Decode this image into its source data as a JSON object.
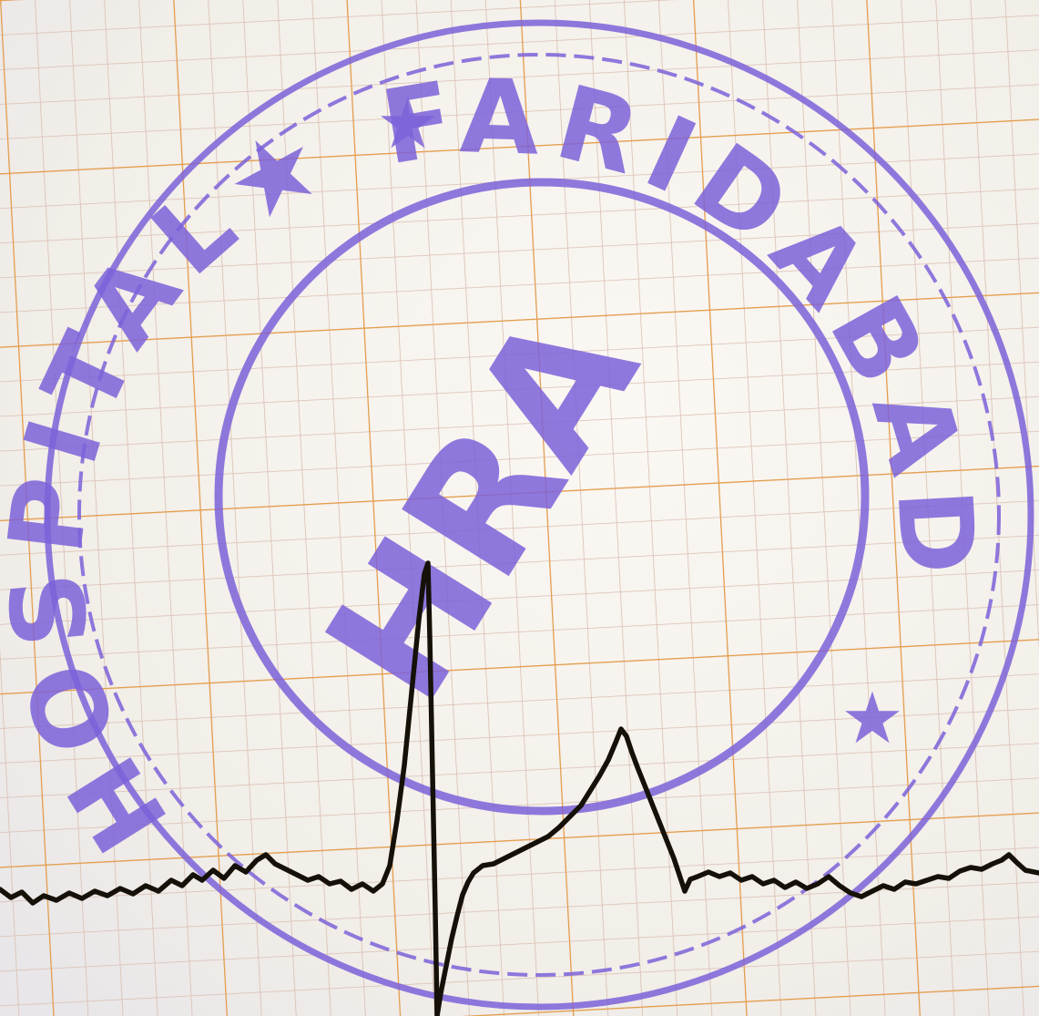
{
  "photo": {
    "subject": "ECG paper",
    "paper_color": "#f8f4ef",
    "grid_minor_color": "#d8b8a6",
    "grid_major_color": "#e0953f",
    "trace_color": "#151108",
    "stamp_color": "#7b62d8"
  },
  "stamp": {
    "outer_ring_text": "HOSPITAL★ FARIDABAD",
    "center_text": "HRA",
    "star_glyph": "★"
  }
}
